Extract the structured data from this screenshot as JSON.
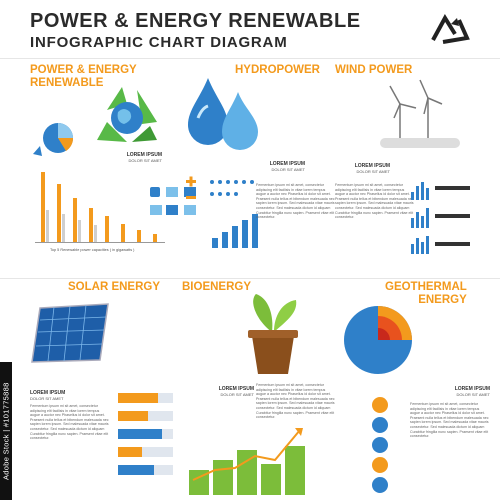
{
  "header": {
    "title_line1": "POWER & ENERGY RENEWABLE",
    "title_line2": "INFOGRAPHIC CHART DIAGRAM"
  },
  "sections": {
    "power_renewable": "POWER & ENERGY\nRENEWABLE",
    "hydropower": "HYDROPOWER",
    "wind_power": "WIND POWER",
    "solar_energy": "SOLAR ENERGY",
    "bioenergy": "BIOENERGY",
    "geothermal": "GEOTHERMAL\nENERGY"
  },
  "lorem": {
    "title": "LOREM IPSUM",
    "subtitle": "DOLOR SIT AMET",
    "paragraph": "Fermentum ipsum mi sit amet, consectetur adipiscing elit facilisis in vitae lorem tempus augue a auctor nec Phasellus id dolor sit amet. Praesent nulla tellus et bibendum malesuada nec sapien lorem ipsum. Sed malesuada vitae mauris consectetur. Sed malesuada dictum id aliquam Curabitur fringilla nunc sapien. Praesent vitae elit consectetur."
  },
  "chart_caption": "Top 5 Renewable power capacities ( in gigawatts )",
  "stock_badge": "Adobe Stock | #101775888",
  "colors": {
    "accent_orange": "#f39a1d",
    "blue": "#2f80c9",
    "light_blue": "#7cc0ea",
    "green": "#4caf50",
    "gray": "#cfcfcf"
  },
  "icons": [
    "recycle-earth-icon",
    "water-drop-icon",
    "wind-turbine-icon",
    "solar-panel-icon",
    "plant-pot-icon",
    "earth-core-icon",
    "recycle-logo-icon"
  ]
}
